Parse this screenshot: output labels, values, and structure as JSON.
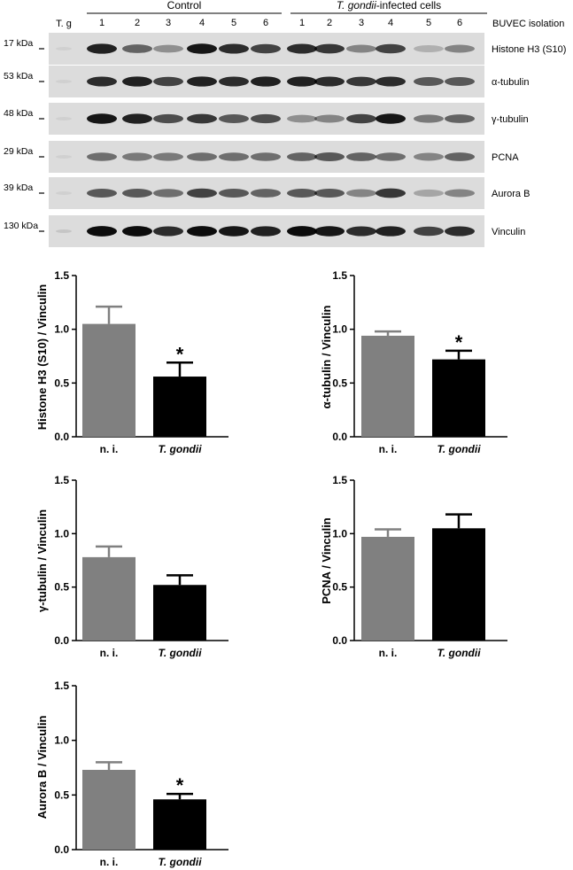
{
  "blot": {
    "group_labels": {
      "control": "Control",
      "infected_italic": "T. gondii",
      "infected_rest": "-infected cells"
    },
    "column_header": "BUVEC isolation",
    "tg_label": "T. g",
    "lanes": [
      "1",
      "2",
      "3",
      "4",
      "5",
      "6",
      "1",
      "2",
      "3",
      "4",
      "5",
      "6"
    ],
    "rows": [
      {
        "kda": "17 kDa",
        "protein": "Histone H3 (S10)",
        "intensity": [
          0.85,
          0.55,
          0.35,
          0.9,
          0.8,
          0.7,
          0.8,
          0.75,
          0.4,
          0.7,
          0.2,
          0.4
        ],
        "tg": 0.05
      },
      {
        "kda": "53 kDa",
        "protein": "α-tubulin",
        "intensity": [
          0.8,
          0.85,
          0.7,
          0.85,
          0.8,
          0.85,
          0.85,
          0.8,
          0.75,
          0.8,
          0.6,
          0.6
        ],
        "tg": 0.05
      },
      {
        "kda": "48 kDa",
        "protein": "γ-tubulin",
        "intensity": [
          0.9,
          0.85,
          0.65,
          0.75,
          0.6,
          0.65,
          0.35,
          0.4,
          0.7,
          0.9,
          0.45,
          0.55
        ],
        "tg": 0.05
      },
      {
        "kda": "29 kDa",
        "protein": "PCNA",
        "intensity": [
          0.5,
          0.45,
          0.45,
          0.5,
          0.5,
          0.5,
          0.55,
          0.6,
          0.55,
          0.5,
          0.4,
          0.55
        ],
        "tg": 0.05
      },
      {
        "kda": "39 kDa",
        "protein": "Aurora B",
        "intensity": [
          0.6,
          0.6,
          0.5,
          0.7,
          0.6,
          0.55,
          0.6,
          0.6,
          0.4,
          0.75,
          0.25,
          0.4
        ],
        "tg": 0.05
      },
      {
        "kda": "130 kDa",
        "protein": "Vinculin",
        "intensity": [
          0.95,
          0.95,
          0.8,
          0.95,
          0.9,
          0.85,
          0.95,
          0.9,
          0.8,
          0.85,
          0.7,
          0.8
        ],
        "tg": 0.1
      }
    ]
  },
  "chart_data": [
    {
      "type": "bar",
      "categories": [
        "n. i.",
        "T. gondii"
      ],
      "values": [
        1.05,
        0.56
      ],
      "errors": [
        0.16,
        0.13
      ],
      "colors": [
        "#808080",
        "#000000"
      ],
      "ylabel": "Histone H3 (S10) / Vinculin",
      "ylim": [
        0,
        1.5
      ],
      "yticks": [
        "0.0",
        "0.5",
        "1.0",
        "1.5"
      ],
      "significance": [
        "",
        "*"
      ]
    },
    {
      "type": "bar",
      "categories": [
        "n. i.",
        "T. gondii"
      ],
      "values": [
        0.94,
        0.72
      ],
      "errors": [
        0.04,
        0.08
      ],
      "colors": [
        "#808080",
        "#000000"
      ],
      "ylabel": "α-tubulin / Vinculin",
      "ylim": [
        0,
        1.5
      ],
      "yticks": [
        "0.0",
        "0.5",
        "1.0",
        "1.5"
      ],
      "significance": [
        "",
        "*"
      ]
    },
    {
      "type": "bar",
      "categories": [
        "n. i.",
        "T. gondii"
      ],
      "values": [
        0.78,
        0.52
      ],
      "errors": [
        0.1,
        0.09
      ],
      "colors": [
        "#808080",
        "#000000"
      ],
      "ylabel": "γ-tubulin / Vinculin",
      "ylim": [
        0,
        1.5
      ],
      "yticks": [
        "0.0",
        "0.5",
        "1.0",
        "1.5"
      ],
      "significance": [
        "",
        ""
      ]
    },
    {
      "type": "bar",
      "categories": [
        "n. i.",
        "T. gondii"
      ],
      "values": [
        0.97,
        1.05
      ],
      "errors": [
        0.07,
        0.13
      ],
      "colors": [
        "#808080",
        "#000000"
      ],
      "ylabel": "PCNA / Vinculin",
      "ylim": [
        0,
        1.5
      ],
      "yticks": [
        "0.0",
        "0.5",
        "1.0",
        "1.5"
      ],
      "significance": [
        "",
        ""
      ]
    },
    {
      "type": "bar",
      "categories": [
        "n. i.",
        "T. gondii"
      ],
      "values": [
        0.73,
        0.46
      ],
      "errors": [
        0.07,
        0.05
      ],
      "colors": [
        "#808080",
        "#000000"
      ],
      "ylabel": "Aurora B / Vinculin",
      "ylim": [
        0,
        1.5
      ],
      "yticks": [
        "0.0",
        "0.5",
        "1.0",
        "1.5"
      ],
      "significance": [
        "",
        "*"
      ]
    }
  ]
}
